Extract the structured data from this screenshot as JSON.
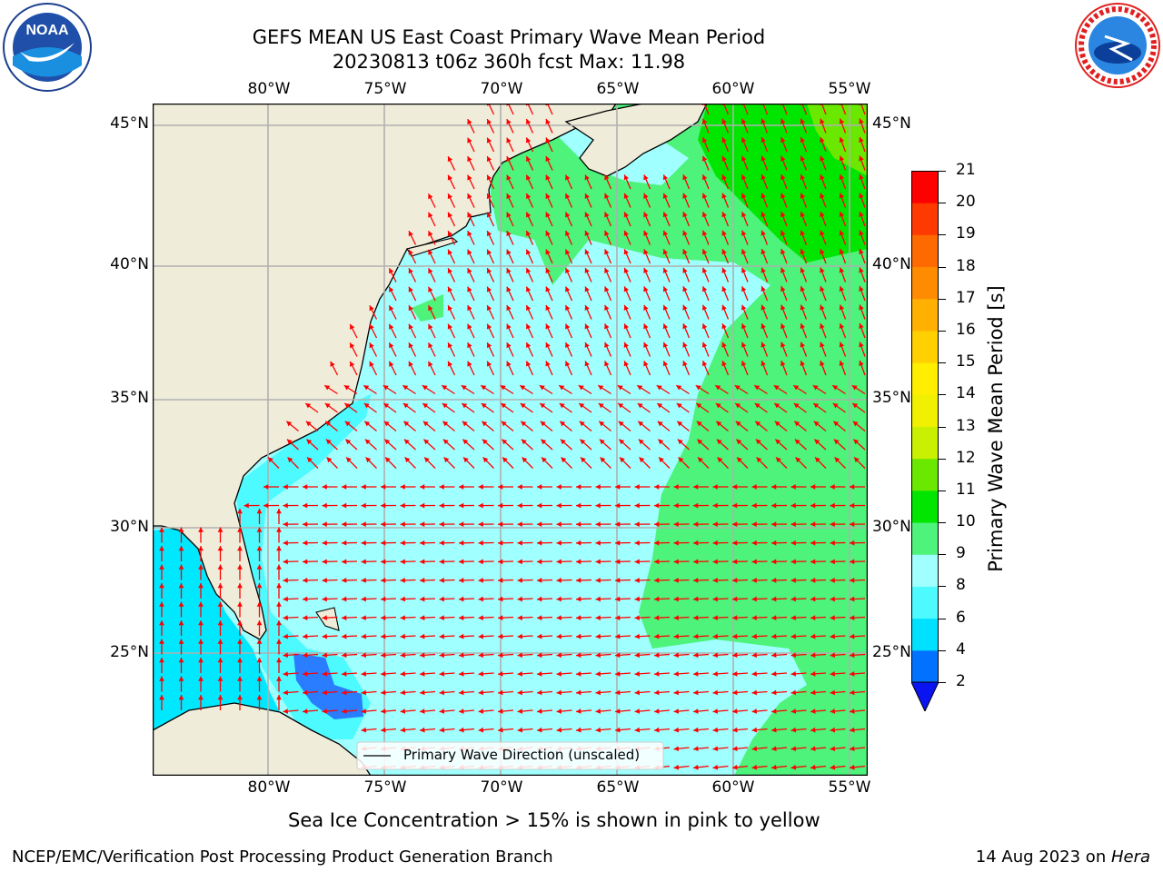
{
  "header": {
    "title_line1": "GEFS MEAN US East Coast Primary Wave Mean Period",
    "title_line2": "20230813 t06z 360h fcst   Max: 11.98"
  },
  "logos": {
    "noaa_text": "NOAA",
    "noaa_ring": "NATIONAL OCEANIC AND ATMOSPHERIC ADMINISTRATION · U.S. DEPARTMENT OF COMMERCE",
    "nws_ring": "NATIONAL WEATHER SERVICE"
  },
  "axes": {
    "lon_ticks": [
      "80°W",
      "75°W",
      "70°W",
      "65°W",
      "60°W",
      "55°W"
    ],
    "lat_ticks": [
      "45°N",
      "40°N",
      "35°N",
      "30°N",
      "25°N"
    ]
  },
  "legend": {
    "label": "Primary Wave Direction (unscaled)"
  },
  "colorbar": {
    "label": "Primary Wave Mean Period [s]",
    "ticks": [
      "2",
      "4",
      "6",
      "8",
      "9",
      "10",
      "11",
      "12",
      "13",
      "14",
      "15",
      "16",
      "17",
      "18",
      "19",
      "20",
      "21"
    ],
    "colors": [
      "#0072ff",
      "#00e1ff",
      "#4dfaff",
      "#a0ffff",
      "#4df37a",
      "#00e600",
      "#6ae800",
      "#c8f000",
      "#f0f000",
      "#ffee00",
      "#ffd000",
      "#ffb000",
      "#ff8c00",
      "#ff6a00",
      "#ff3a00",
      "#ff0000"
    ],
    "extend_color": "#0a14f0"
  },
  "notes": {
    "sea_ice": "Sea Ice Concentration > 15% is shown in pink to yellow",
    "credit": "NCEP/EMC/Verification Post Processing Product Generation Branch",
    "date": "14 Aug 2023 on ",
    "machine": "Hera"
  },
  "map_colors": {
    "land": "#efedda",
    "ocean_light": "#a0ffff",
    "ocean_cyan": "#4dfaff",
    "ocean_bright": "#00e8ff",
    "green_light": "#4df37a",
    "green": "#00e600",
    "green_yellow": "#6ae800",
    "blue": "#2a7dff",
    "arrow": "#ff0000",
    "grid": "#b0b0b0"
  }
}
